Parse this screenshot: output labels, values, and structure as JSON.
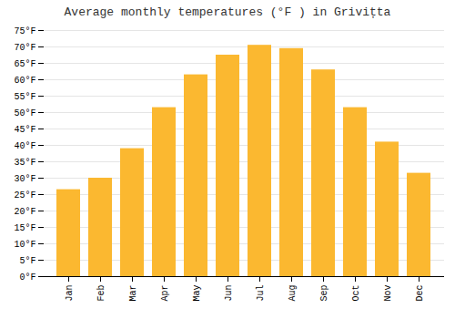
{
  "chart_data": {
    "type": "bar",
    "title": "Average monthly temperatures (°F ) in Grivițta",
    "categories": [
      "Jan",
      "Feb",
      "Mar",
      "Apr",
      "May",
      "Jun",
      "Jul",
      "Aug",
      "Sep",
      "Oct",
      "Nov",
      "Dec"
    ],
    "values": [
      26.5,
      30.0,
      39.0,
      51.5,
      61.5,
      67.5,
      70.5,
      69.5,
      63.0,
      51.5,
      41.0,
      31.5
    ],
    "color": "#FBB830",
    "ylim": [
      0,
      75
    ],
    "yticks": [
      {
        "value": 0,
        "label": "0°F"
      },
      {
        "value": 5,
        "label": "5°F"
      },
      {
        "value": 10,
        "label": "10°F"
      },
      {
        "value": 15,
        "label": "15°F"
      },
      {
        "value": 20,
        "label": "20°F"
      },
      {
        "value": 25,
        "label": "25°F"
      },
      {
        "value": 30,
        "label": "30°F"
      },
      {
        "value": 35,
        "label": "35°F"
      },
      {
        "value": 40,
        "label": "40°F"
      },
      {
        "value": 45,
        "label": "45°F"
      },
      {
        "value": 50,
        "label": "50°F"
      },
      {
        "value": 55,
        "label": "55°F"
      },
      {
        "value": 60,
        "label": "60°F"
      },
      {
        "value": 65,
        "label": "65°F"
      },
      {
        "value": 70,
        "label": "70°F"
      },
      {
        "value": 75,
        "label": "75°F"
      }
    ],
    "grid": true
  }
}
